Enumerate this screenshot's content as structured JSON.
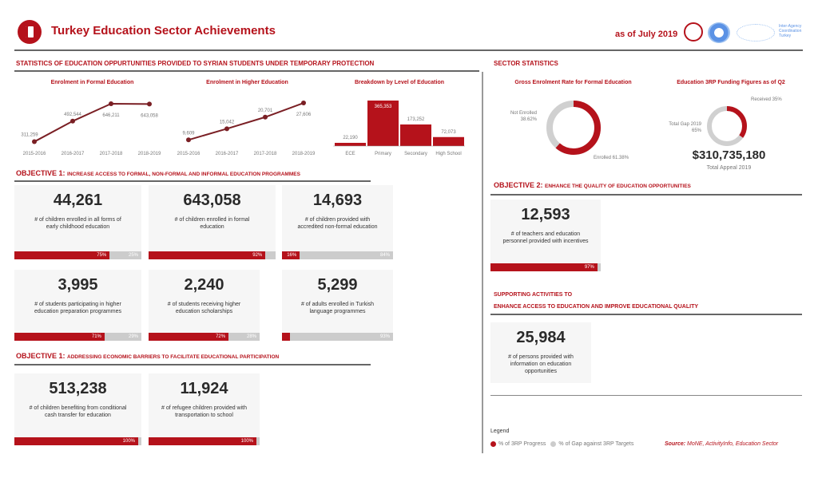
{
  "header": {
    "title": "Turkey Education Sector Achievements",
    "as_of": "as of July 2019",
    "partner_logo_text": "Inter-Agency Coordination Turkey"
  },
  "left": {
    "section_title": "STATISTICS OF EDUCATION OPPURTUNITIES PROVIDED TO SYRIAN STUDENTS UNDER TEMPORARY PROTECTION"
  },
  "right": {
    "section_title": "SECTOR STATISTICS"
  },
  "chart_data": [
    {
      "type": "line",
      "title": "Enrolment in Formal Education",
      "categories": [
        "2015-2016",
        "2016-2017",
        "2017-2018",
        "2018-2019"
      ],
      "values": [
        311259,
        492544,
        646211,
        643058
      ],
      "labels": [
        "311,259",
        "492,544",
        "646,211",
        "643,058"
      ],
      "ylim": [
        280000,
        660000
      ]
    },
    {
      "type": "line",
      "title": "Enrolment in Higher Education",
      "categories": [
        "2015-2016",
        "2016-2017",
        "2017-2018",
        "2018-2019"
      ],
      "values": [
        9609,
        15042,
        20701,
        27606
      ],
      "labels": [
        "9,609",
        "15,042",
        "20,701",
        "27,606"
      ],
      "ylim": [
        7000,
        28000
      ]
    },
    {
      "type": "bar",
      "title": "Breakdown by Level of Education",
      "categories": [
        "ECE",
        "Primary",
        "Secondary",
        "High School"
      ],
      "values": [
        22190,
        365353,
        173252,
        72073
      ],
      "labels": [
        "22,190",
        "365,353",
        "173,252",
        "72,073"
      ],
      "ylim": [
        0,
        365353
      ]
    },
    {
      "type": "pie",
      "title": "Gross Enrolment Rate for Formal Education",
      "slices": [
        {
          "label": "Enrolled 61.38%",
          "value": 61.38
        },
        {
          "label": "Not Enrolled",
          "sub": "38.62%",
          "value": 38.62
        }
      ]
    },
    {
      "type": "pie",
      "title": "Education 3RP Funding Figures as of Q2",
      "slices": [
        {
          "label": "Received 35%",
          "value": 35
        },
        {
          "label": "Total Gap 2019",
          "sub": "65%",
          "value": 65
        }
      ]
    }
  ],
  "funding": {
    "amount": "$310,735,180",
    "caption": "Total Appeal 2019"
  },
  "objective1": {
    "label": "OBJECTIVE 1:",
    "text": "INCREASE ACCESS TO FORMAL, NON-FORMAL AND INFORMAL EDUCATION PROGRAMMES"
  },
  "objective1b": {
    "label": "OBJECTIVE 1:",
    "text": "ADDRESSING ECONOMIC BARRIERS TO FACILITATE EDUCATIONAL PARTICIPATION"
  },
  "objective2": {
    "label": "OBJECTIVE 2:",
    "text": "ENHANCE THE QUALITY OF EDUCATION OPPORTUNITIES"
  },
  "supporting": {
    "line1": "SUPPORTING ACTIVITIES TO",
    "line2": "ENHANCE ACCESS TO EDUCATION AND IMPROVE EDUCATIONAL QUALITY"
  },
  "cards": [
    {
      "num": "44,261",
      "desc": "# of children enrolled in all forms of early childhood education",
      "progress": 75,
      "p": "75%",
      "g": "25%"
    },
    {
      "num": "643,058",
      "desc": "# of children enrolled in formal education",
      "progress": 92,
      "p": "92%",
      "g": ""
    },
    {
      "num": "14,693",
      "desc": "# of children provided with accredited non-formal education",
      "progress": 16,
      "p": "16%",
      "g": "84%"
    },
    {
      "num": "3,995",
      "desc": "# of students participating in higher education preparation programmes",
      "progress": 71,
      "p": "71%",
      "g": "29%"
    },
    {
      "num": "2,240",
      "desc": "# of students receiving higher education scholarships",
      "progress": 72,
      "p": "72%",
      "g": "28%"
    },
    {
      "num": "5,299",
      "desc": "# of adults enrolled in Turkish language programmes",
      "progress": 7,
      "p": "",
      "g": "93%"
    },
    {
      "num": "513,238",
      "desc": "# of children benefiting from conditional cash transfer for education",
      "progress": 100,
      "p": "100%",
      "g": ""
    },
    {
      "num": "11,924",
      "desc": "# of refugee children provided with transportation to school",
      "progress": 100,
      "p": "100%",
      "g": ""
    },
    {
      "num": "12,593",
      "desc": "# of teachers and education personnel provided with incentives",
      "progress": 97,
      "p": "97%",
      "g": ""
    },
    {
      "num": "25,984",
      "desc": "# of persons provided with information on education opportunities"
    }
  ],
  "legend": {
    "title": "Legend",
    "progress": "% of 3RP Progress",
    "gap": "% of Gap against 3RP Targets",
    "source_label": "Source:",
    "source": "MoNE, ActivityInfo, Education Sector"
  },
  "colors": {
    "accent": "#b5121b",
    "gap": "#cccccc"
  }
}
